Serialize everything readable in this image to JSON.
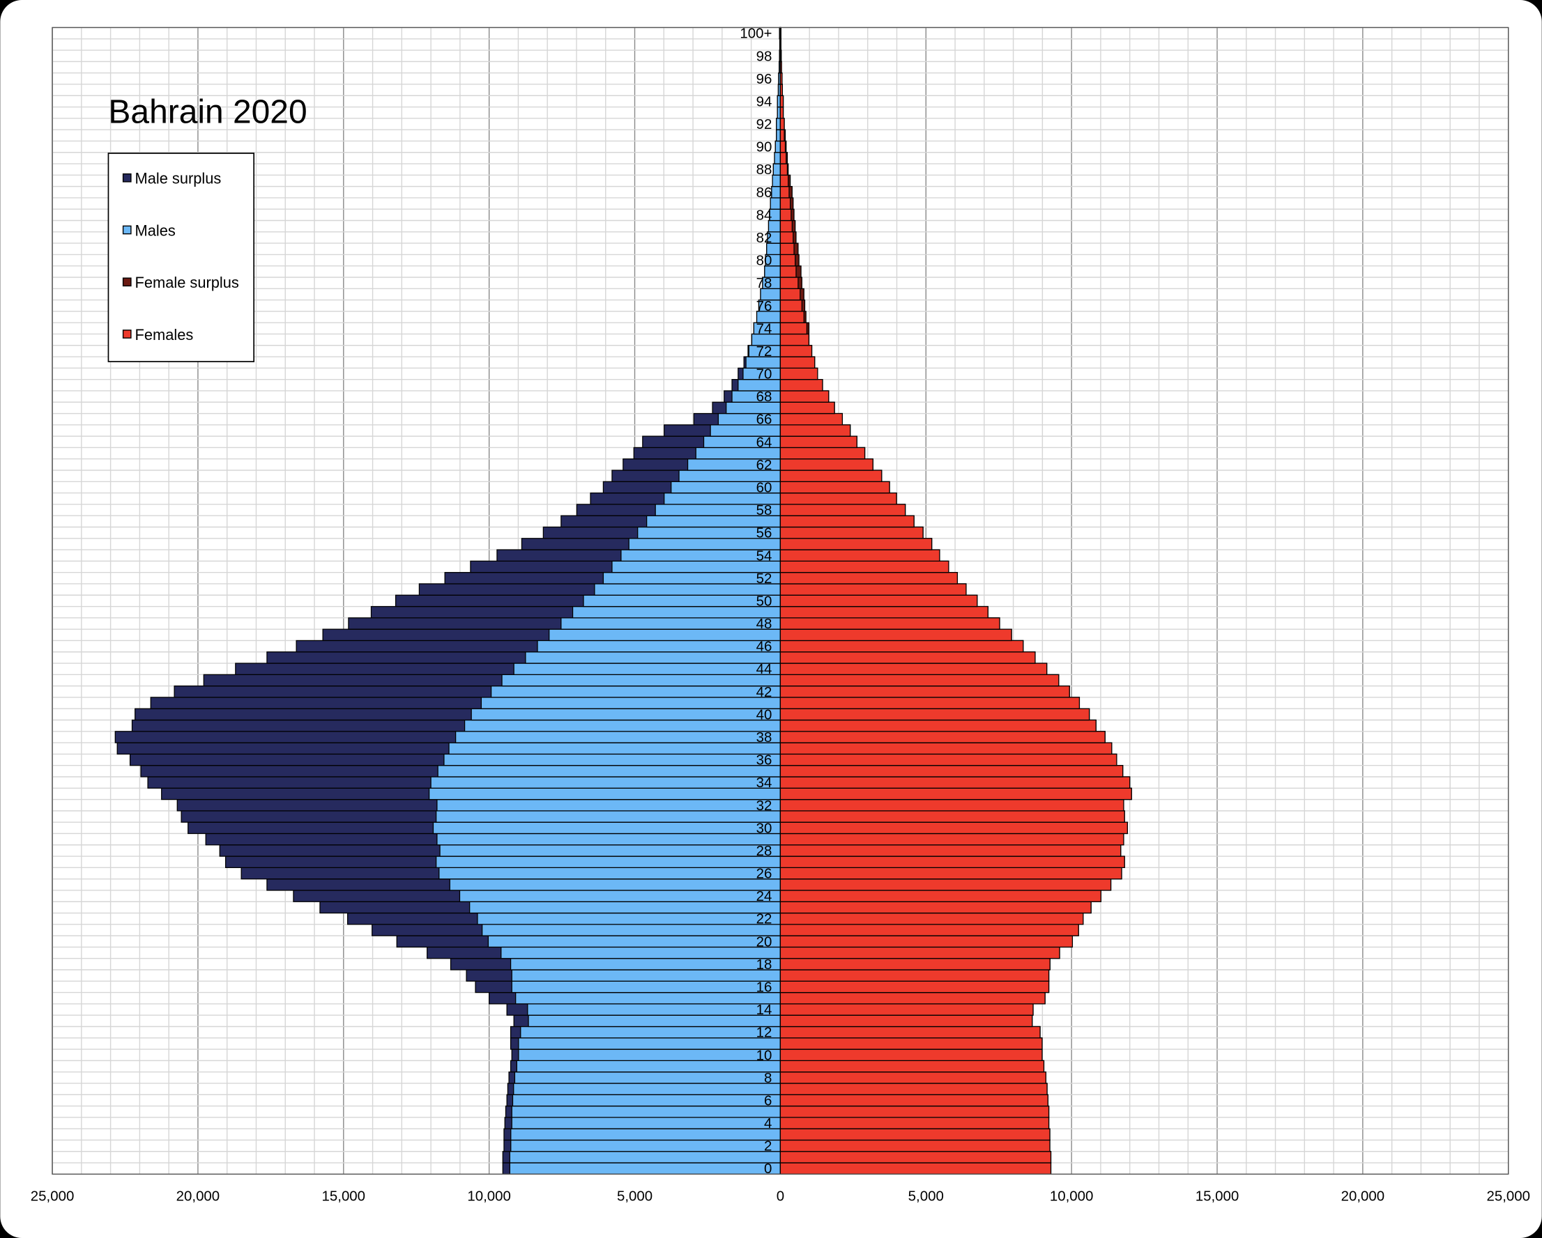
{
  "chart_data": {
    "type": "bar",
    "subtype": "population-pyramid",
    "title": "Bahrain 2020",
    "xlabel": "",
    "ylabel": "",
    "xlim": [
      -25000,
      25000
    ],
    "x_tick_values": [
      -25000,
      -20000,
      -15000,
      -10000,
      -5000,
      0,
      5000,
      10000,
      15000,
      20000,
      25000
    ],
    "x_tick_labels": [
      "25,000",
      "20,000",
      "15,000",
      "10,000",
      "5,000",
      "0",
      "5,000",
      "10,000",
      "15,000",
      "20,000",
      "25,000"
    ],
    "age_labels_shown": [
      "0",
      "2",
      "4",
      "6",
      "8",
      "10",
      "12",
      "14",
      "16",
      "18",
      "20",
      "22",
      "24",
      "26",
      "28",
      "30",
      "32",
      "34",
      "36",
      "38",
      "40",
      "42",
      "44",
      "46",
      "48",
      "50",
      "52",
      "54",
      "56",
      "58",
      "60",
      "62",
      "64",
      "66",
      "68",
      "70",
      "72",
      "74",
      "76",
      "78",
      "80",
      "82",
      "84",
      "86",
      "88",
      "90",
      "92",
      "94",
      "96",
      "98",
      "100+"
    ],
    "ages": "0-100+ single years",
    "grid": true,
    "legend_position": "top-left",
    "legend": [
      {
        "name": "Male surplus",
        "color": "#262a5e"
      },
      {
        "name": "Males",
        "color": "#6cb8f6"
      },
      {
        "name": "Female surplus",
        "color": "#6b1a12"
      },
      {
        "name": "Females",
        "color": "#ee3a2c"
      }
    ],
    "series": [
      {
        "name": "Males",
        "values": [
          9530,
          9530,
          9490,
          9490,
          9460,
          9430,
          9390,
          9360,
          9320,
          9260,
          9220,
          9260,
          9260,
          9150,
          9390,
          10000,
          10470,
          10780,
          11320,
          12130,
          13170,
          14020,
          14860,
          15810,
          16720,
          17630,
          18510,
          19050,
          19250,
          19730,
          20340,
          20570,
          20710,
          21250,
          21720,
          21960,
          22330,
          22770,
          22840,
          22260,
          22160,
          21620,
          20810,
          19800,
          18710,
          17630,
          16620,
          15710,
          14830,
          14050,
          13210,
          12400,
          11520,
          10640,
          9730,
          8880,
          8140,
          7530,
          6990,
          6520,
          6080,
          5780,
          5400,
          5030,
          4730,
          3990,
          2970,
          2330,
          1930,
          1660,
          1450,
          1250,
          1110,
          980,
          910,
          810,
          740,
          680,
          610,
          540,
          510,
          470,
          440,
          405,
          370,
          340,
          300,
          270,
          240,
          200,
          170,
          135,
          135,
          100,
          100,
          70,
          60,
          40,
          30,
          20,
          30
        ]
      },
      {
        "name": "Females",
        "values": [
          9290,
          9290,
          9255,
          9255,
          9220,
          9220,
          9190,
          9160,
          9120,
          9050,
          8990,
          8990,
          8920,
          8650,
          8680,
          9090,
          9220,
          9220,
          9260,
          9590,
          10030,
          10240,
          10400,
          10670,
          11010,
          11350,
          11720,
          11820,
          11690,
          11790,
          11920,
          11820,
          11790,
          12060,
          12000,
          11760,
          11550,
          11380,
          11150,
          10840,
          10610,
          10270,
          9930,
          9560,
          9150,
          8750,
          8340,
          7940,
          7530,
          7130,
          6760,
          6380,
          6080,
          5780,
          5470,
          5200,
          4900,
          4590,
          4290,
          3990,
          3750,
          3480,
          3180,
          2900,
          2630,
          2400,
          2130,
          1860,
          1660,
          1450,
          1280,
          1180,
          1080,
          980,
          980,
          880,
          840,
          810,
          740,
          710,
          640,
          610,
          540,
          510,
          470,
          440,
          405,
          340,
          270,
          240,
          200,
          170,
          135,
          100,
          100,
          70,
          60,
          40,
          30,
          20,
          20
        ]
      }
    ]
  }
}
